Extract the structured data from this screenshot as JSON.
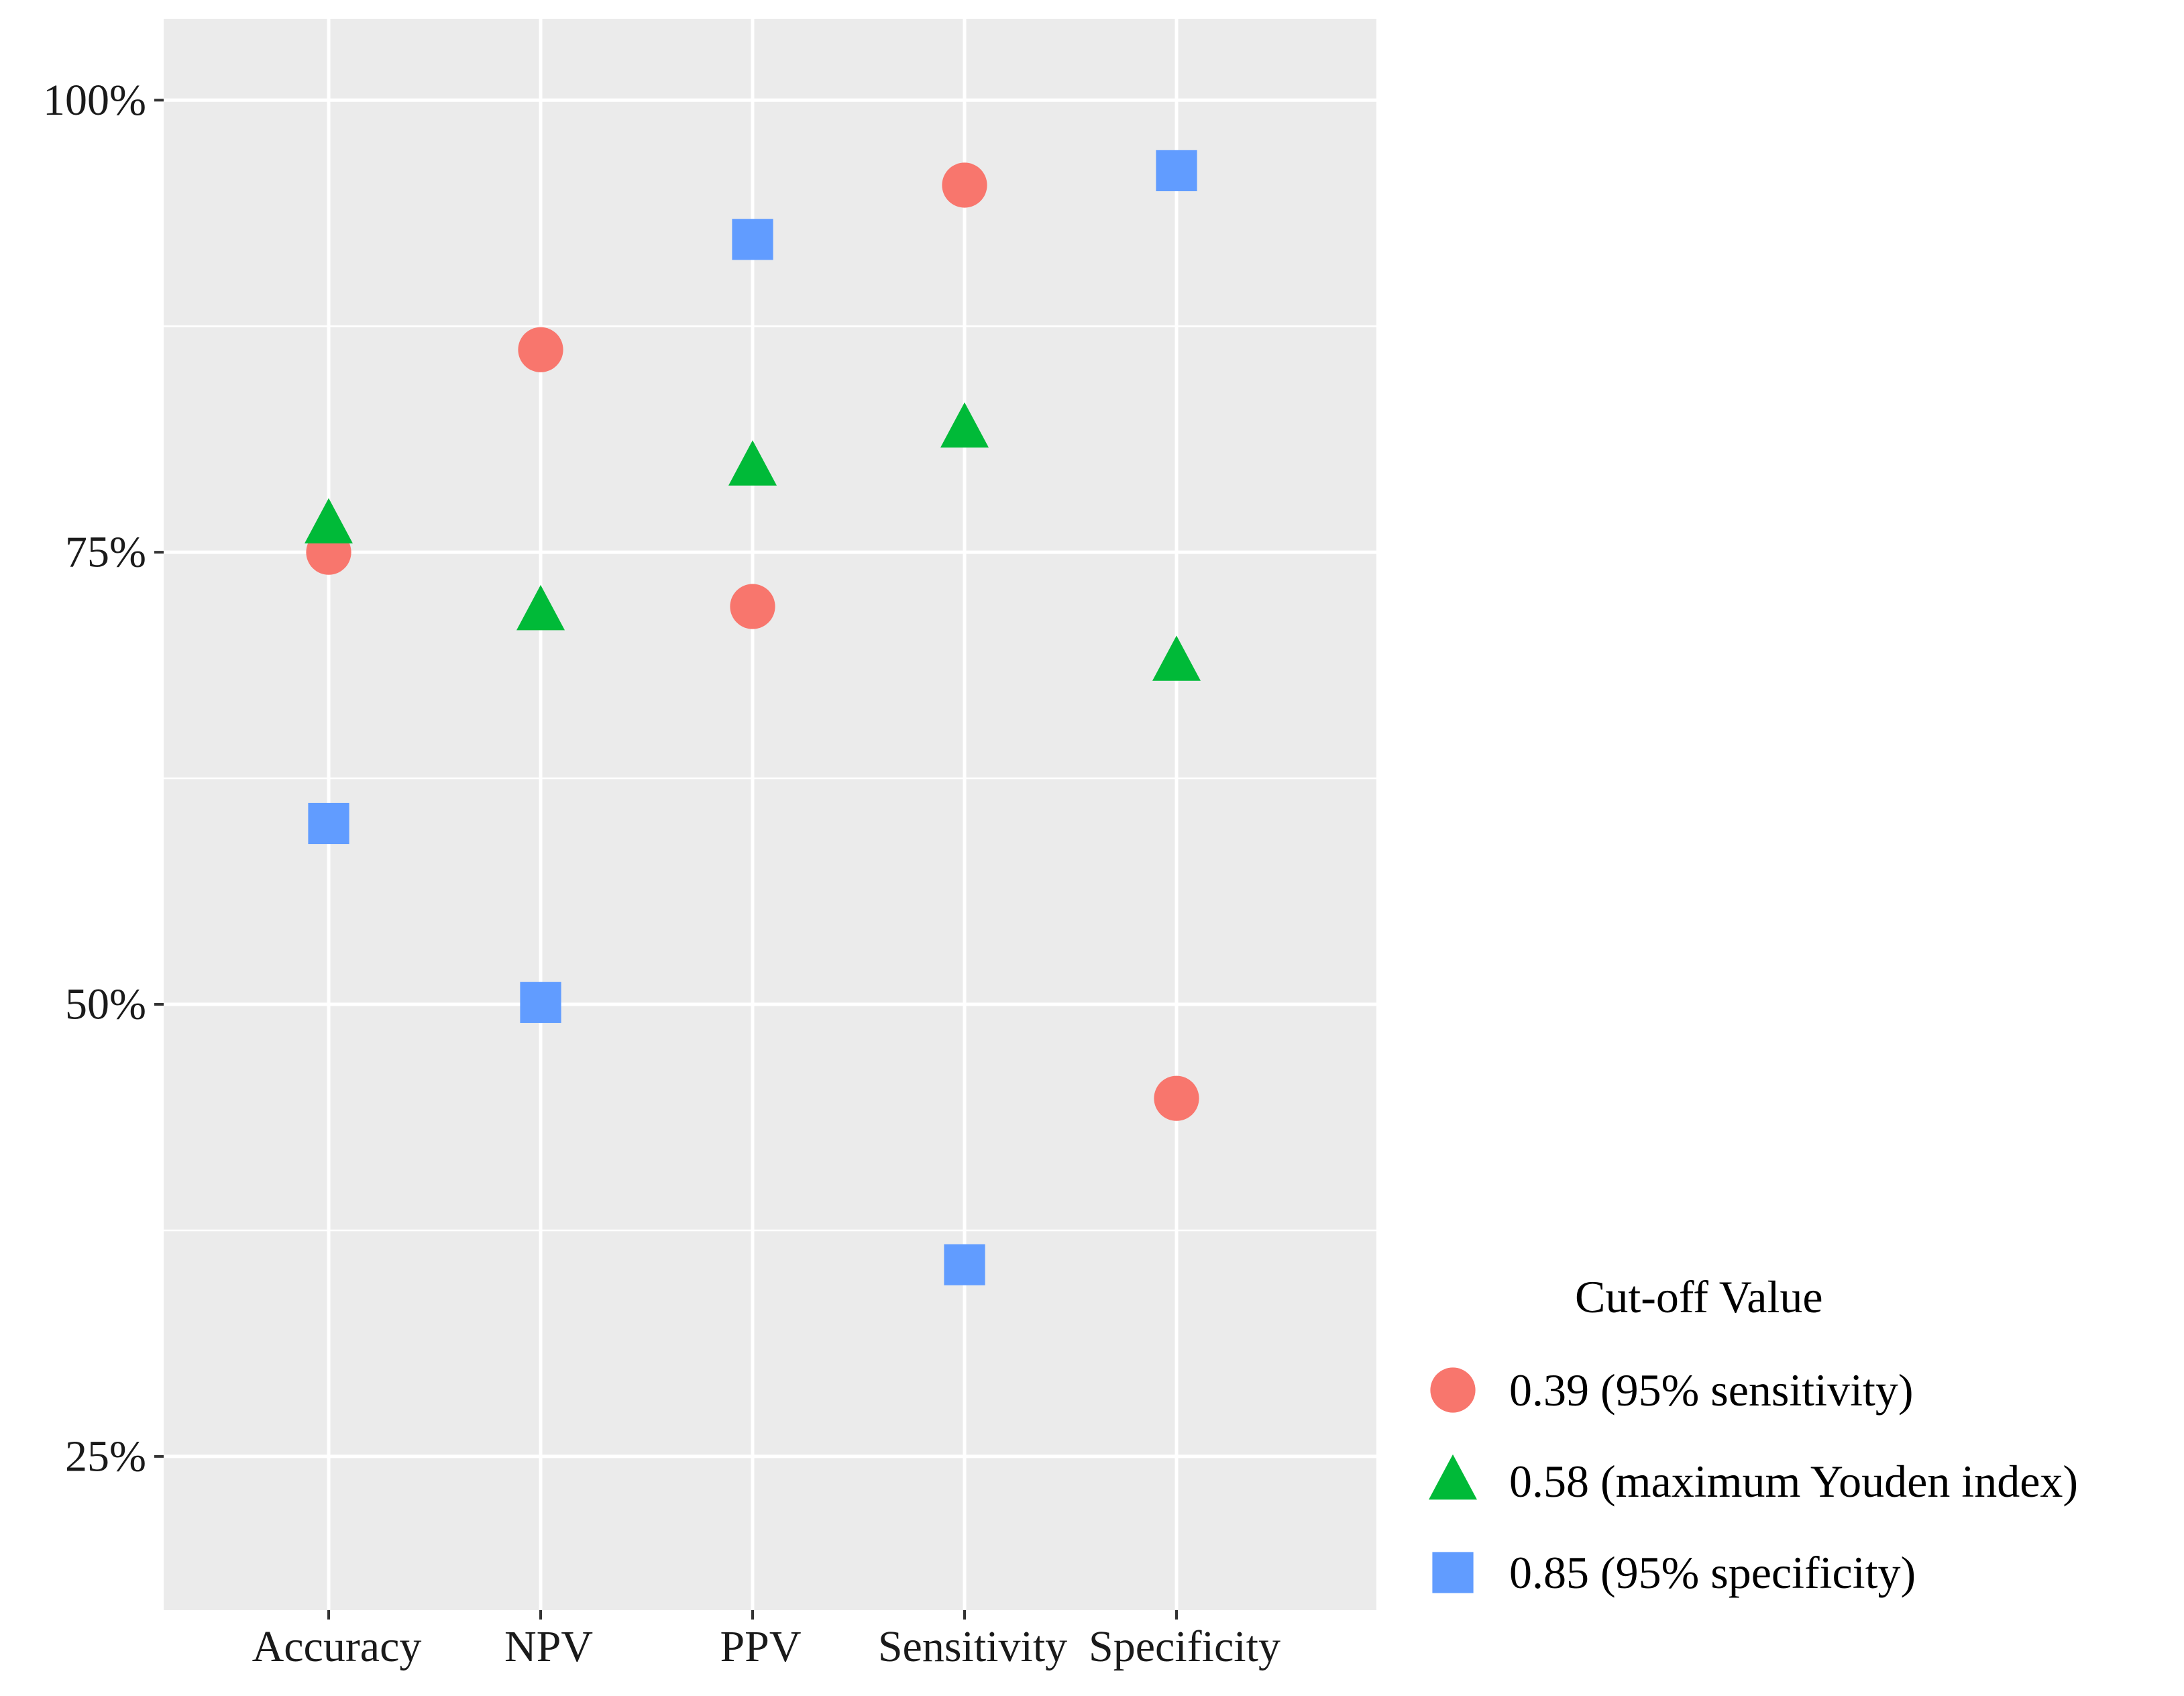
{
  "chart_data": {
    "type": "scatter",
    "title": "",
    "xlabel": "",
    "ylabel": "",
    "categories": [
      "Accuracy",
      "NPV",
      "PPV",
      "Sensitivity",
      "Specificity"
    ],
    "ylim": [
      0.165,
      1.045
    ],
    "y_ticks": [
      0.25,
      0.5,
      0.75,
      1.0
    ],
    "y_tick_labels": [
      "25%",
      "50%",
      "75%",
      "100%"
    ],
    "grid": true,
    "legend": {
      "title": "Cut-off Value",
      "position": "right"
    },
    "series": [
      {
        "name": "0.39 (95% sensitivity)",
        "shape": "circle",
        "color": "#F8766D",
        "values": [
          0.75,
          0.862,
          0.72,
          0.953,
          0.448
        ]
      },
      {
        "name": "0.58 (maximum Youden index)",
        "shape": "triangle",
        "color": "#00BA38",
        "values": [
          0.765,
          0.717,
          0.797,
          0.818,
          0.689
        ]
      },
      {
        "name": "0.85 (95% specificity)",
        "shape": "square",
        "color": "#619CFF",
        "values": [
          0.6,
          0.501,
          0.923,
          0.356,
          0.961
        ]
      }
    ]
  }
}
